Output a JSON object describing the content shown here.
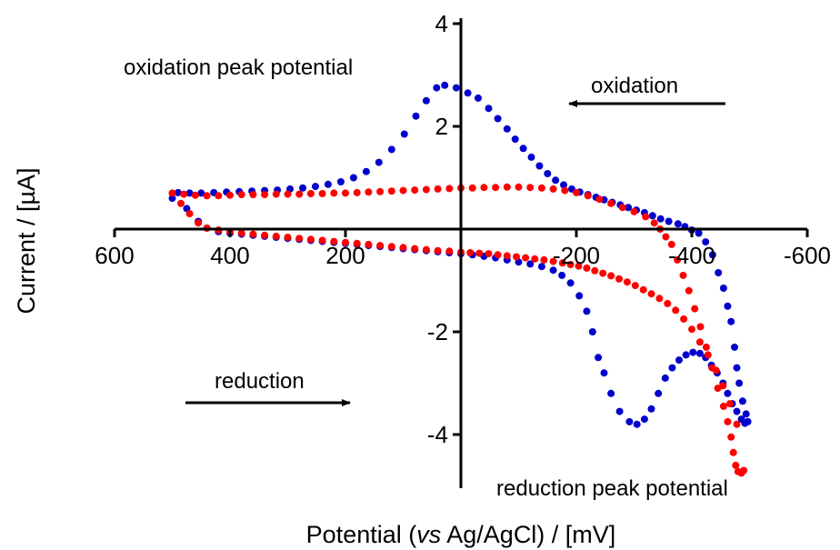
{
  "chart_data": {
    "type": "scatter",
    "title": "",
    "xlabel": {
      "prefix": "Potential (",
      "italic": "vs",
      "suffix": " Ag/AgCl) / [mV]"
    },
    "ylabel": "Current / [µA]",
    "xlim": [
      600,
      -600
    ],
    "ylim": [
      -5,
      4
    ],
    "x_reversed": true,
    "grid": false,
    "legend": "none",
    "x_ticks": [
      600,
      400,
      200,
      -200,
      -400,
      -600
    ],
    "x_tick_labels": [
      "600",
      "400",
      "200",
      "-200",
      "-400",
      "-600"
    ],
    "y_ticks": [
      4,
      2,
      -2,
      -4
    ],
    "y_tick_labels": [
      "4",
      "2",
      "-2",
      "-4"
    ],
    "annotations": {
      "oxidation_peak": "oxidation peak potential",
      "oxidation": "oxidation",
      "reduction": "reduction",
      "reduction_peak": "reduction peak potential"
    },
    "series": [
      {
        "color": "#0000cc",
        "points": [
          [
            500,
            0.6
          ],
          [
            475,
            0.4
          ],
          [
            455,
            0.15
          ],
          [
            440,
            0.02
          ],
          [
            420,
            -0.05
          ],
          [
            400,
            -0.08
          ],
          [
            380,
            -0.1
          ],
          [
            360,
            -0.12
          ],
          [
            340,
            -0.14
          ],
          [
            320,
            -0.16
          ],
          [
            300,
            -0.18
          ],
          [
            280,
            -0.2
          ],
          [
            260,
            -0.22
          ],
          [
            240,
            -0.24
          ],
          [
            220,
            -0.26
          ],
          [
            200,
            -0.28
          ],
          [
            180,
            -0.3
          ],
          [
            160,
            -0.32
          ],
          [
            140,
            -0.34
          ],
          [
            120,
            -0.36
          ],
          [
            100,
            -0.38
          ],
          [
            80,
            -0.4
          ],
          [
            60,
            -0.42
          ],
          [
            40,
            -0.44
          ],
          [
            20,
            -0.46
          ],
          [
            0,
            -0.48
          ],
          [
            -20,
            -0.5
          ],
          [
            -40,
            -0.53
          ],
          [
            -60,
            -0.56
          ],
          [
            -80,
            -0.6
          ],
          [
            -100,
            -0.64
          ],
          [
            -120,
            -0.68
          ],
          [
            -140,
            -0.73
          ],
          [
            -160,
            -0.8
          ],
          [
            -175,
            -0.9
          ],
          [
            -190,
            -1.05
          ],
          [
            -205,
            -1.3
          ],
          [
            -218,
            -1.6
          ],
          [
            -228,
            -2.0
          ],
          [
            -238,
            -2.5
          ],
          [
            -248,
            -2.8
          ],
          [
            -260,
            -3.2
          ],
          [
            -275,
            -3.55
          ],
          [
            -292,
            -3.75
          ],
          [
            -305,
            -3.8
          ],
          [
            -318,
            -3.7
          ],
          [
            -330,
            -3.5
          ],
          [
            -342,
            -3.2
          ],
          [
            -354,
            -2.9
          ],
          [
            -366,
            -2.7
          ],
          [
            -378,
            -2.55
          ],
          [
            -390,
            -2.45
          ],
          [
            -402,
            -2.4
          ],
          [
            -414,
            -2.42
          ],
          [
            -424,
            -2.5
          ],
          [
            -434,
            -2.65
          ],
          [
            -444,
            -2.8
          ],
          [
            -454,
            -3.0
          ],
          [
            -462,
            -3.2
          ],
          [
            -470,
            -3.4
          ],
          [
            -478,
            -3.55
          ],
          [
            -486,
            -3.7
          ],
          [
            -492,
            -3.78
          ],
          [
            -497,
            -3.75
          ],
          [
            -494,
            -3.6
          ],
          [
            -488,
            -3.35
          ],
          [
            -482,
            -3.0
          ],
          [
            -478,
            -2.7
          ],
          [
            -474,
            -2.3
          ],
          [
            -468,
            -1.8
          ],
          [
            -462,
            -1.5
          ],
          [
            -455,
            -1.15
          ],
          [
            -446,
            -0.85
          ],
          [
            -436,
            -0.5
          ],
          [
            -424,
            -0.25
          ],
          [
            -412,
            -0.08
          ],
          [
            -400,
            -0.02
          ],
          [
            -388,
            0.05
          ],
          [
            -376,
            0.1
          ],
          [
            -360,
            0.15
          ],
          [
            -346,
            0.2
          ],
          [
            -332,
            0.26
          ],
          [
            -318,
            0.32
          ],
          [
            -304,
            0.37
          ],
          [
            -290,
            0.42
          ],
          [
            -276,
            0.47
          ],
          [
            -262,
            0.52
          ],
          [
            -248,
            0.57
          ],
          [
            -234,
            0.62
          ],
          [
            -220,
            0.67
          ],
          [
            -206,
            0.72
          ],
          [
            -192,
            0.78
          ],
          [
            -178,
            0.86
          ],
          [
            -164,
            0.95
          ],
          [
            -150,
            1.08
          ],
          [
            -136,
            1.23
          ],
          [
            -122,
            1.4
          ],
          [
            -108,
            1.57
          ],
          [
            -94,
            1.75
          ],
          [
            -80,
            1.95
          ],
          [
            -64,
            2.15
          ],
          [
            -48,
            2.35
          ],
          [
            -30,
            2.55
          ],
          [
            -12,
            2.65
          ],
          [
            8,
            2.75
          ],
          [
            28,
            2.8
          ],
          [
            42,
            2.75
          ],
          [
            60,
            2.5
          ],
          [
            78,
            2.2
          ],
          [
            98,
            1.85
          ],
          [
            120,
            1.55
          ],
          [
            142,
            1.3
          ],
          [
            164,
            1.12
          ],
          [
            186,
            1.0
          ],
          [
            208,
            0.92
          ],
          [
            230,
            0.87
          ],
          [
            252,
            0.83
          ],
          [
            274,
            0.8
          ],
          [
            296,
            0.78
          ],
          [
            318,
            0.76
          ],
          [
            340,
            0.75
          ],
          [
            362,
            0.74
          ],
          [
            384,
            0.73
          ],
          [
            406,
            0.72
          ],
          [
            428,
            0.71
          ],
          [
            450,
            0.7
          ],
          [
            470,
            0.7
          ],
          [
            490,
            0.71
          ]
        ]
      },
      {
        "color": "#ff0000",
        "points": [
          [
            500,
            0.7
          ],
          [
            480,
            0.68
          ],
          [
            460,
            0.66
          ],
          [
            440,
            0.65
          ],
          [
            420,
            0.65
          ],
          [
            400,
            0.66
          ],
          [
            380,
            0.67
          ],
          [
            360,
            0.67
          ],
          [
            340,
            0.67
          ],
          [
            320,
            0.68
          ],
          [
            300,
            0.68
          ],
          [
            280,
            0.68
          ],
          [
            260,
            0.69
          ],
          [
            240,
            0.69
          ],
          [
            220,
            0.7
          ],
          [
            200,
            0.7
          ],
          [
            180,
            0.71
          ],
          [
            160,
            0.72
          ],
          [
            140,
            0.73
          ],
          [
            120,
            0.74
          ],
          [
            100,
            0.75
          ],
          [
            80,
            0.76
          ],
          [
            60,
            0.77
          ],
          [
            40,
            0.78
          ],
          [
            20,
            0.79
          ],
          [
            0,
            0.8
          ],
          [
            -20,
            0.8
          ],
          [
            -40,
            0.81
          ],
          [
            -60,
            0.81
          ],
          [
            -80,
            0.82
          ],
          [
            -100,
            0.82
          ],
          [
            -120,
            0.81
          ],
          [
            -140,
            0.8
          ],
          [
            -160,
            0.78
          ],
          [
            -180,
            0.75
          ],
          [
            -200,
            0.71
          ],
          [
            -220,
            0.65
          ],
          [
            -240,
            0.58
          ],
          [
            -260,
            0.5
          ],
          [
            -280,
            0.42
          ],
          [
            -300,
            0.34
          ],
          [
            -320,
            0.24
          ],
          [
            -335,
            0.12
          ],
          [
            -345,
            0.0
          ],
          [
            -355,
            -0.15
          ],
          [
            -365,
            -0.3
          ],
          [
            -375,
            -0.6
          ],
          [
            -385,
            -0.9
          ],
          [
            -395,
            -1.2
          ],
          [
            -405,
            -1.55
          ],
          [
            -415,
            -1.9
          ],
          [
            -425,
            -2.3
          ],
          [
            -435,
            -2.7
          ],
          [
            -445,
            -3.1
          ],
          [
            -455,
            -3.45
          ],
          [
            -462,
            -3.75
          ],
          [
            -468,
            -4.05
          ],
          [
            -472,
            -4.35
          ],
          [
            -476,
            -4.6
          ],
          [
            -480,
            -4.72
          ],
          [
            -486,
            -4.75
          ],
          [
            -490,
            -4.7
          ],
          [
            -478,
            -3.8
          ],
          [
            -466,
            -3.4
          ],
          [
            -454,
            -3.05
          ],
          [
            -442,
            -2.75
          ],
          [
            -428,
            -2.45
          ],
          [
            -414,
            -2.2
          ],
          [
            -400,
            -1.95
          ],
          [
            -386,
            -1.75
          ],
          [
            -372,
            -1.58
          ],
          [
            -358,
            -1.45
          ],
          [
            -344,
            -1.35
          ],
          [
            -330,
            -1.26
          ],
          [
            -316,
            -1.18
          ],
          [
            -302,
            -1.1
          ],
          [
            -288,
            -1.03
          ],
          [
            -274,
            -0.97
          ],
          [
            -260,
            -0.91
          ],
          [
            -246,
            -0.86
          ],
          [
            -232,
            -0.81
          ],
          [
            -218,
            -0.76
          ],
          [
            -204,
            -0.72
          ],
          [
            -190,
            -0.69
          ],
          [
            -176,
            -0.66
          ],
          [
            -160,
            -0.63
          ],
          [
            -144,
            -0.6
          ],
          [
            -128,
            -0.58
          ],
          [
            -112,
            -0.56
          ],
          [
            -96,
            -0.54
          ],
          [
            -80,
            -0.52
          ],
          [
            -64,
            -0.5
          ],
          [
            -48,
            -0.48
          ],
          [
            -32,
            -0.47
          ],
          [
            -16,
            -0.46
          ],
          [
            0,
            -0.45
          ],
          [
            20,
            -0.43
          ],
          [
            40,
            -0.42
          ],
          [
            60,
            -0.4
          ],
          [
            80,
            -0.38
          ],
          [
            100,
            -0.36
          ],
          [
            120,
            -0.34
          ],
          [
            140,
            -0.32
          ],
          [
            160,
            -0.3
          ],
          [
            180,
            -0.28
          ],
          [
            200,
            -0.26
          ],
          [
            220,
            -0.24
          ],
          [
            240,
            -0.22
          ],
          [
            260,
            -0.2
          ],
          [
            280,
            -0.18
          ],
          [
            300,
            -0.16
          ],
          [
            320,
            -0.14
          ],
          [
            340,
            -0.12
          ],
          [
            360,
            -0.1
          ],
          [
            380,
            -0.08
          ],
          [
            400,
            -0.05
          ],
          [
            420,
            -0.02
          ],
          [
            440,
            0.02
          ],
          [
            455,
            0.12
          ],
          [
            470,
            0.3
          ],
          [
            485,
            0.5
          ]
        ]
      }
    ]
  }
}
